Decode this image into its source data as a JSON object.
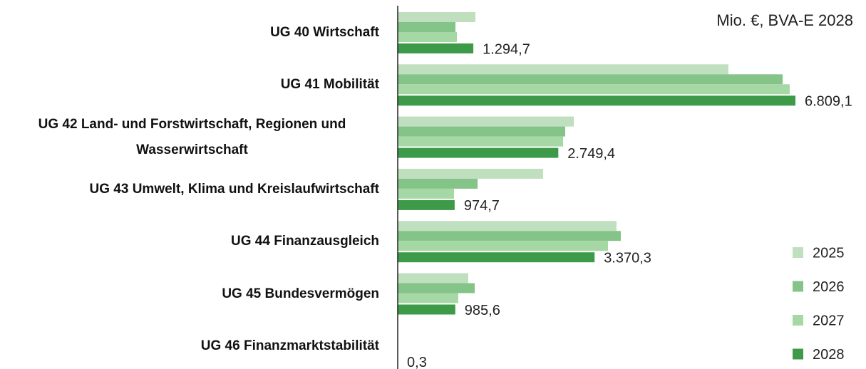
{
  "chart_data": {
    "type": "bar",
    "orientation": "horizontal",
    "title": "Mio. €, BVA-E 2028",
    "categories": [
      "UG 40 Wirtschaft",
      "UG 41 Mobilität",
      "UG 42 Land- und Forstwirtschaft, Regionen und Wasserwirtschaft",
      "UG 43 Umwelt, Klima und Kreislaufwirtschaft",
      "UG 44 Finanzausgleich",
      "UG 45 Bundesvermögen",
      "UG 46 Finanzmarktstabilität"
    ],
    "series": [
      {
        "name": "2025",
        "color": "#bfdfbf",
        "values": [
          1330,
          5662,
          3014,
          2489,
          3746,
          1208,
          0.3
        ]
      },
      {
        "name": "2026",
        "color": "#85c488",
        "values": [
          988,
          6590,
          2868,
          1367,
          3819,
          1318,
          0.3
        ]
      },
      {
        "name": "2027",
        "color": "#a6d8a6",
        "values": [
          1013,
          6711,
          2831,
          964,
          3600,
          1037,
          0.3
        ]
      },
      {
        "name": "2028",
        "color": "#3d9a48",
        "values": [
          1294.7,
          6809.1,
          2749.4,
          974.7,
          3370.3,
          985.6,
          0.3
        ],
        "value_labels": [
          "1.294,7",
          "6.809,1",
          "2.749,4",
          "974,7",
          "3.370,3",
          "985,6",
          "0,3"
        ]
      }
    ],
    "legend": "right"
  }
}
